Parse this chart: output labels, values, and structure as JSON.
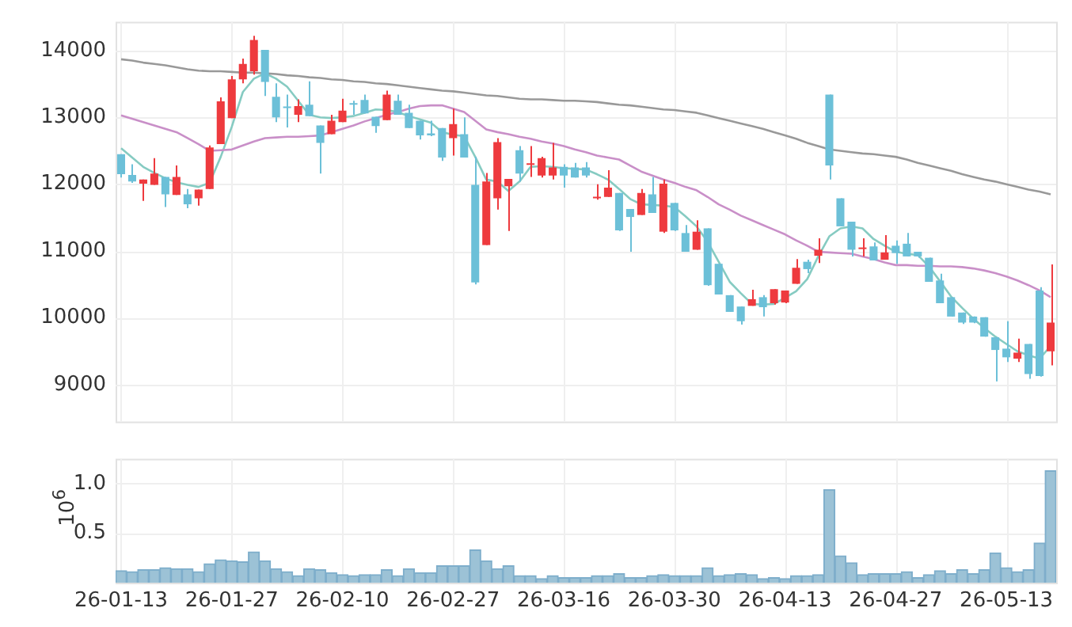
{
  "chart_data": [
    {
      "type": "candlestick",
      "tick_labels": "y",
      "grid": true,
      "categories": [
        null,
        null,
        null,
        null,
        null,
        null,
        null,
        null,
        null,
        null,
        null,
        null,
        null,
        null,
        null,
        null,
        null,
        null,
        null,
        null,
        null,
        null,
        null,
        null,
        null,
        null,
        null,
        null,
        null,
        null,
        null,
        null,
        null,
        null,
        null,
        null,
        null,
        null,
        null,
        null,
        null,
        null,
        null,
        null,
        null,
        null,
        null,
        null,
        null,
        null,
        null,
        null,
        null,
        null,
        null,
        null,
        null,
        null,
        null,
        null,
        null,
        null,
        null,
        null,
        null,
        null,
        null,
        null,
        null,
        null,
        null,
        null,
        null,
        null,
        null,
        null,
        null,
        null,
        null,
        null,
        null,
        null,
        null,
        null,
        null
      ],
      "ylim": [
        8450,
        14430
      ],
      "yticks": [
        9000,
        10000,
        11000,
        12000,
        13000,
        14000
      ],
      "ohlc": [
        [
          12450,
          12450,
          12100,
          12150
        ],
        [
          12140,
          12300,
          12020,
          12040
        ],
        [
          12010,
          12070,
          11750,
          12070
        ],
        [
          11990,
          12390,
          11990,
          12160
        ],
        [
          12110,
          12110,
          11660,
          11850
        ],
        [
          11840,
          12280,
          11840,
          12110
        ],
        [
          11850,
          11930,
          11640,
          11700
        ],
        [
          11790,
          11920,
          11680,
          11920
        ],
        [
          11930,
          12580,
          11930,
          12550
        ],
        [
          12600,
          13300,
          12600,
          13240
        ],
        [
          12990,
          13620,
          12990,
          13570
        ],
        [
          13570,
          13880,
          13510,
          13800
        ],
        [
          13690,
          14220,
          13640,
          14160
        ],
        [
          14010,
          14010,
          13320,
          13530
        ],
        [
          13310,
          13510,
          12930,
          13000
        ],
        [
          13150,
          13340,
          12850,
          13140
        ],
        [
          13040,
          13270,
          12930,
          13170
        ],
        [
          13190,
          13540,
          13020,
          13020
        ],
        [
          12880,
          12880,
          12160,
          12620
        ],
        [
          12750,
          13040,
          12750,
          12950
        ],
        [
          12930,
          13280,
          12930,
          13100
        ],
        [
          13210,
          13250,
          13040,
          13190
        ],
        [
          13260,
          13340,
          13060,
          13060
        ],
        [
          13010,
          13010,
          12770,
          12870
        ],
        [
          12960,
          13400,
          12960,
          13340
        ],
        [
          13250,
          13340,
          13040,
          13040
        ],
        [
          13070,
          13190,
          12840,
          12840
        ],
        [
          12950,
          12950,
          12670,
          12730
        ],
        [
          12760,
          12950,
          12720,
          12730
        ],
        [
          12840,
          12840,
          12350,
          12400
        ],
        [
          12690,
          13130,
          12430,
          12900
        ],
        [
          12750,
          13000,
          12400,
          12400
        ],
        [
          11990,
          12410,
          10500,
          10530
        ],
        [
          11090,
          12170,
          11090,
          12040
        ],
        [
          11790,
          12690,
          11620,
          12630
        ],
        [
          11970,
          12080,
          11300,
          12080
        ],
        [
          12510,
          12570,
          12040,
          12160
        ],
        [
          12290,
          12570,
          12110,
          12300
        ],
        [
          12130,
          12410,
          12100,
          12390
        ],
        [
          12130,
          12620,
          12070,
          12250
        ],
        [
          12260,
          12300,
          11950,
          12130
        ],
        [
          12250,
          12320,
          12100,
          12100
        ],
        [
          12250,
          12330,
          12100,
          12130
        ],
        [
          11790,
          12000,
          11770,
          11810
        ],
        [
          11810,
          12210,
          11810,
          11950
        ],
        [
          11870,
          11870,
          11300,
          11310
        ],
        [
          11630,
          11630,
          10990,
          11510
        ],
        [
          11540,
          11930,
          11540,
          11870
        ],
        [
          11850,
          12110,
          11570,
          11570
        ],
        [
          11290,
          12070,
          11270,
          12010
        ],
        [
          11720,
          11720,
          11300,
          11310
        ],
        [
          11270,
          11390,
          10990,
          10990
        ],
        [
          11020,
          11460,
          11020,
          11290
        ],
        [
          11340,
          11340,
          10480,
          10490
        ],
        [
          10810,
          10810,
          10350,
          10350
        ],
        [
          10340,
          10340,
          10090,
          10090
        ],
        [
          10170,
          10170,
          9900,
          9950
        ],
        [
          10180,
          10420,
          10180,
          10280
        ],
        [
          10310,
          10340,
          10020,
          10160
        ],
        [
          10220,
          10430,
          10200,
          10430
        ],
        [
          10230,
          10410,
          10220,
          10410
        ],
        [
          10510,
          10880,
          10510,
          10750
        ],
        [
          10840,
          10870,
          10670,
          10730
        ],
        [
          10930,
          11190,
          10820,
          11020
        ],
        [
          13340,
          13340,
          12070,
          12280
        ],
        [
          11790,
          11790,
          11370,
          11370
        ],
        [
          11440,
          11440,
          10920,
          11020
        ],
        [
          11030,
          11190,
          10920,
          11050
        ],
        [
          11070,
          11130,
          10860,
          10860
        ],
        [
          10870,
          11240,
          10870,
          10980
        ],
        [
          11080,
          11160,
          10810,
          10970
        ],
        [
          11110,
          11270,
          10920,
          10920
        ],
        [
          10990,
          10990,
          10900,
          10920
        ],
        [
          10900,
          10900,
          10540,
          10540
        ],
        [
          10560,
          10660,
          10220,
          10220
        ],
        [
          10310,
          10310,
          10020,
          10020
        ],
        [
          10080,
          10080,
          9910,
          9930
        ],
        [
          10020,
          10020,
          9920,
          9930
        ],
        [
          10010,
          10010,
          9720,
          9720
        ],
        [
          9710,
          9710,
          9050,
          9520
        ],
        [
          9540,
          9950,
          9340,
          9410
        ],
        [
          9390,
          9690,
          9340,
          9480
        ],
        [
          9610,
          9610,
          9090,
          9160
        ],
        [
          10410,
          10460,
          9120,
          9130
        ],
        [
          9500,
          10800,
          9290,
          9930
        ]
      ],
      "colors": [
        "#6cc0d8",
        "#6cc0d8",
        "#ee3a3e",
        "#ee3a3e",
        "#6cc0d8",
        "#ee3a3e",
        "#6cc0d8",
        "#ee3a3e",
        "#ee3a3e",
        "#ee3a3e",
        "#ee3a3e",
        "#ee3a3e",
        "#ee3a3e",
        "#6cc0d8",
        "#6cc0d8",
        "#6cc0d8",
        "#ee3a3e",
        "#6cc0d8",
        "#6cc0d8",
        "#ee3a3e",
        "#ee3a3e",
        "#6cc0d8",
        "#6cc0d8",
        "#6cc0d8",
        "#ee3a3e",
        "#6cc0d8",
        "#6cc0d8",
        "#6cc0d8",
        "#6cc0d8",
        "#6cc0d8",
        "#ee3a3e",
        "#6cc0d8",
        "#6cc0d8",
        "#ee3a3e",
        "#ee3a3e",
        "#ee3a3e",
        "#6cc0d8",
        "#ee3a3e",
        "#ee3a3e",
        "#ee3a3e",
        "#6cc0d8",
        "#6cc0d8",
        "#6cc0d8",
        "#ee3a3e",
        "#ee3a3e",
        "#6cc0d8",
        "#6cc0d8",
        "#ee3a3e",
        "#6cc0d8",
        "#ee3a3e",
        "#6cc0d8",
        "#6cc0d8",
        "#ee3a3e",
        "#6cc0d8",
        "#6cc0d8",
        "#6cc0d8",
        "#6cc0d8",
        "#ee3a3e",
        "#6cc0d8",
        "#ee3a3e",
        "#ee3a3e",
        "#ee3a3e",
        "#6cc0d8",
        "#ee3a3e",
        "#6cc0d8",
        "#6cc0d8",
        "#6cc0d8",
        "#ee3a3e",
        "#6cc0d8",
        "#ee3a3e",
        "#6cc0d8",
        "#6cc0d8",
        "#6cc0d8",
        "#6cc0d8",
        "#6cc0d8",
        "#6cc0d8",
        "#6cc0d8",
        "#6cc0d8",
        "#6cc0d8",
        "#6cc0d8",
        "#6cc0d8",
        "#ee3a3e",
        "#6cc0d8",
        "#6cc0d8",
        "#ee3a3e"
      ],
      "series": [
        {
          "type": "line",
          "color": "#999999",
          "values": [
            13870,
            13850,
            13820,
            13800,
            13780,
            13750,
            13720,
            13700,
            13690,
            13690,
            13680,
            13670,
            13670,
            13660,
            13650,
            13630,
            13620,
            13600,
            13590,
            13570,
            13560,
            13540,
            13530,
            13510,
            13500,
            13480,
            13460,
            13440,
            13420,
            13400,
            13390,
            13370,
            13350,
            13330,
            13320,
            13300,
            13280,
            13270,
            13270,
            13260,
            13250,
            13250,
            13240,
            13230,
            13210,
            13190,
            13180,
            13160,
            13140,
            13120,
            13110,
            13090,
            13070,
            13030,
            12990,
            12950,
            12910,
            12870,
            12830,
            12780,
            12730,
            12680,
            12620,
            12570,
            12520,
            12500,
            12480,
            12460,
            12450,
            12430,
            12410,
            12370,
            12320,
            12280,
            12240,
            12200,
            12150,
            12110,
            12070,
            12040,
            12000,
            11960,
            11920,
            11890,
            11850
          ]
        },
        {
          "type": "line",
          "color": "#c98fc8",
          "values": [
            13030,
            12980,
            12930,
            12880,
            12830,
            12780,
            12690,
            12600,
            12500,
            12510,
            12520,
            12580,
            12640,
            12690,
            12700,
            12710,
            12710,
            12720,
            12730,
            12780,
            12830,
            12880,
            12940,
            12990,
            13040,
            13080,
            13130,
            13170,
            13180,
            13180,
            13130,
            13080,
            12950,
            12820,
            12780,
            12750,
            12710,
            12680,
            12640,
            12610,
            12570,
            12520,
            12480,
            12430,
            12400,
            12370,
            12280,
            12190,
            12130,
            12070,
            12020,
            11960,
            11910,
            11810,
            11700,
            11620,
            11530,
            11460,
            11390,
            11320,
            11250,
            11160,
            11080,
            10990,
            10980,
            10970,
            10960,
            10920,
            10880,
            10830,
            10790,
            10790,
            10780,
            10780,
            10770,
            10770,
            10760,
            10740,
            10710,
            10670,
            10620,
            10560,
            10490,
            10410,
            10310
          ]
        },
        {
          "type": "line",
          "color": "#86cbc2",
          "values": [
            12540,
            12400,
            12260,
            12170,
            12090,
            12030,
            11990,
            11960,
            12020,
            12410,
            12860,
            13380,
            13580,
            13660,
            13580,
            13460,
            13250,
            13040,
            13000,
            12990,
            13000,
            13020,
            13070,
            13120,
            13110,
            13080,
            13020,
            12970,
            12920,
            12780,
            12740,
            12720,
            12410,
            12070,
            12040,
            11900,
            12040,
            12260,
            12270,
            12260,
            12240,
            12230,
            12220,
            12150,
            12070,
            11930,
            11780,
            11700,
            11690,
            11680,
            11660,
            11520,
            11370,
            11140,
            10840,
            10540,
            10370,
            10210,
            10200,
            10210,
            10300,
            10400,
            10580,
            10920,
            11220,
            11340,
            11370,
            11340,
            11180,
            11080,
            10990,
            10960,
            10940,
            10770,
            10550,
            10320,
            10150,
            9990,
            9850,
            9720,
            9610,
            9500,
            9440,
            9390,
            9580
          ]
        }
      ]
    },
    {
      "type": "bar",
      "grid": true,
      "ylabel": "10$^{6}$",
      "color": "#9cc2d6",
      "categories": [
        "26-01-13",
        null,
        null,
        null,
        null,
        null,
        null,
        null,
        null,
        null,
        "26-01-27",
        null,
        null,
        null,
        null,
        null,
        null,
        null,
        null,
        null,
        "26-02-10",
        null,
        null,
        null,
        null,
        null,
        null,
        null,
        null,
        null,
        "26-02-27",
        null,
        null,
        null,
        null,
        null,
        null,
        null,
        null,
        null,
        "26-03-16",
        null,
        null,
        null,
        null,
        null,
        null,
        null,
        null,
        null,
        "26-03-30",
        null,
        null,
        null,
        null,
        null,
        null,
        null,
        null,
        null,
        "26-04-13",
        null,
        null,
        null,
        null,
        null,
        null,
        null,
        null,
        null,
        "26-04-27",
        null,
        null,
        null,
        null,
        null,
        null,
        null,
        null,
        null,
        "26-05-13",
        null,
        null,
        null,
        null
      ],
      "ylim": [
        0,
        1.25
      ],
      "yticks": [
        {
          "value": 0.5,
          "label": "0.5"
        },
        {
          "value": 1,
          "label": "1.0"
        }
      ],
      "values": [
        0.12,
        0.11,
        0.13,
        0.13,
        0.15,
        0.14,
        0.14,
        0.11,
        0.19,
        0.23,
        0.22,
        0.21,
        0.31,
        0.22,
        0.14,
        0.11,
        0.07,
        0.14,
        0.13,
        0.1,
        0.08,
        0.07,
        0.08,
        0.08,
        0.13,
        0.07,
        0.14,
        0.1,
        0.1,
        0.17,
        0.17,
        0.17,
        0.33,
        0.22,
        0.14,
        0.17,
        0.07,
        0.07,
        0.04,
        0.07,
        0.05,
        0.05,
        0.05,
        0.07,
        0.07,
        0.09,
        0.05,
        0.05,
        0.07,
        0.08,
        0.07,
        0.07,
        0.07,
        0.15,
        0.07,
        0.08,
        0.09,
        0.08,
        0.04,
        0.05,
        0.04,
        0.07,
        0.07,
        0.08,
        0.94,
        0.27,
        0.2,
        0.08,
        0.09,
        0.09,
        0.09,
        0.11,
        0.05,
        0.08,
        0.12,
        0.09,
        0.13,
        0.09,
        0.13,
        0.3,
        0.15,
        0.11,
        0.13,
        0.4,
        1.13
      ]
    }
  ]
}
